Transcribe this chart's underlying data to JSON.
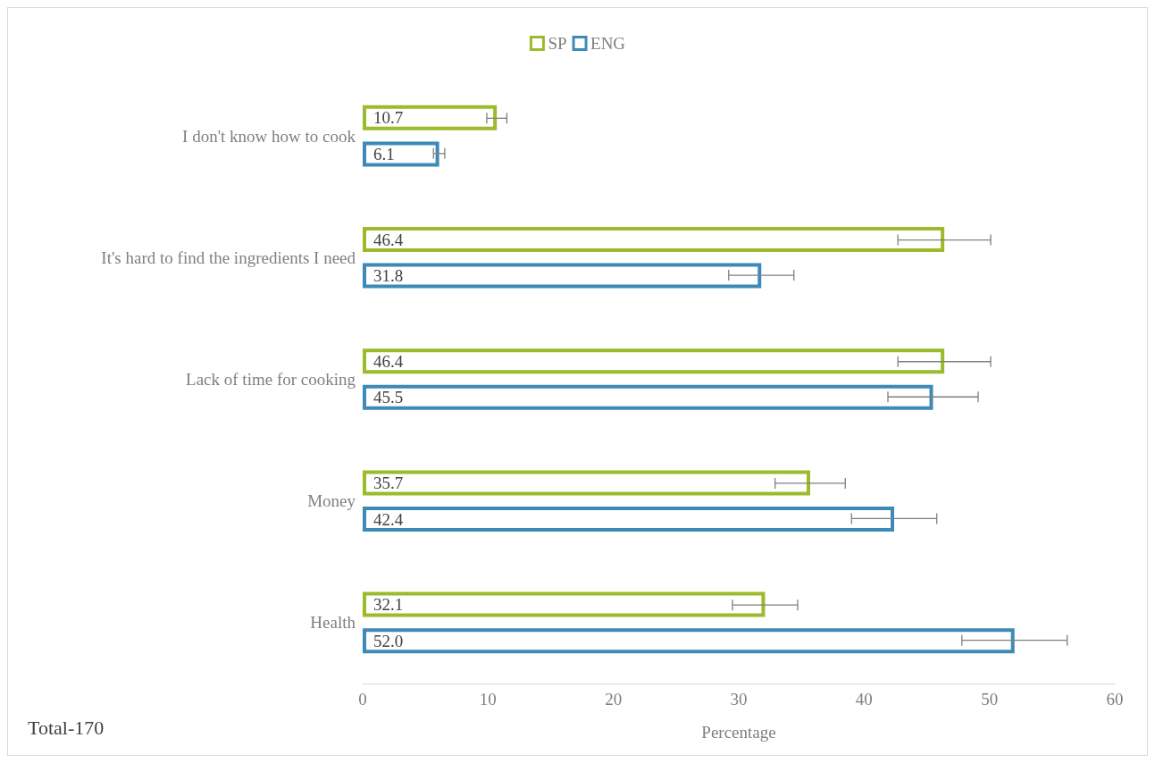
{
  "chart_data": {
    "type": "bar",
    "orientation": "horizontal",
    "categories": [
      "I don't know how to cook",
      "It's hard to find the ingredients I need",
      "Lack of time for cooking",
      "Money",
      "Health"
    ],
    "series": [
      {
        "name": "SP",
        "color": "#9bbb2a",
        "values": [
          10.7,
          46.4,
          46.4,
          35.7,
          32.1
        ],
        "value_labels": [
          "10.7",
          "46.4",
          "46.4",
          "35.7",
          "32.1"
        ],
        "errors": [
          0.8,
          3.7,
          3.7,
          2.8,
          2.6
        ]
      },
      {
        "name": "ENG",
        "color": "#3d8ab8",
        "values": [
          6.1,
          31.8,
          45.5,
          42.4,
          52.0
        ],
        "value_labels": [
          "6.1",
          "31.8",
          "45.5",
          "42.4",
          "52.0"
        ],
        "errors": [
          0.45,
          2.6,
          3.6,
          3.4,
          4.2
        ]
      }
    ],
    "xlim": [
      0,
      60
    ],
    "xticks": [
      0,
      10,
      20,
      30,
      40,
      50,
      60
    ],
    "xlabel": "Percentage",
    "legend": "top",
    "grid": false,
    "annotations": [
      "Total-170"
    ]
  }
}
